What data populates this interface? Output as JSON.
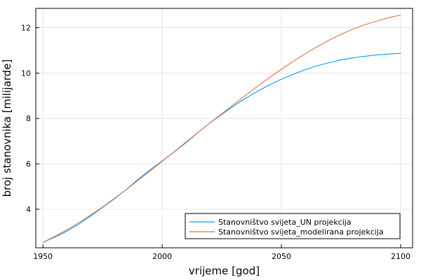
{
  "chart_data": {
    "type": "line",
    "xlabel": "vrijeme [god]",
    "ylabel": "broj stanovnika [milijarde]",
    "xlim": [
      1947,
      2105
    ],
    "ylim": [
      2.3,
      12.85
    ],
    "x_ticks": [
      1950,
      2000,
      2050,
      2100
    ],
    "y_ticks": [
      4,
      6,
      8,
      10,
      12
    ],
    "grid": true,
    "legend_position": "bottom-right",
    "series": [
      {
        "name": "Stanovništvo svijeta_UN projekcija",
        "color": "#009AFA",
        "x": [
          1950,
          1955,
          1960,
          1965,
          1970,
          1975,
          1980,
          1985,
          1990,
          1995,
          2000,
          2005,
          2010,
          2015,
          2020,
          2025,
          2030,
          2035,
          2040,
          2045,
          2050,
          2055,
          2060,
          2065,
          2070,
          2075,
          2080,
          2085,
          2090,
          2095,
          2100
        ],
        "values": [
          2.54,
          2.77,
          3.03,
          3.34,
          3.7,
          4.08,
          4.46,
          4.87,
          5.33,
          5.74,
          6.13,
          6.52,
          6.93,
          7.38,
          7.8,
          8.18,
          8.55,
          8.89,
          9.2,
          9.48,
          9.73,
          9.95,
          10.15,
          10.32,
          10.46,
          10.58,
          10.67,
          10.74,
          10.8,
          10.84,
          10.87
        ]
      },
      {
        "name": "Stanovništvo svijeta_modelirana projekcija",
        "color": "#E26F46",
        "x": [
          1950,
          1955,
          1960,
          1965,
          1970,
          1975,
          1980,
          1985,
          1990,
          1995,
          2000,
          2005,
          2010,
          2015,
          2020,
          2025,
          2030,
          2035,
          2040,
          2045,
          2050,
          2055,
          2060,
          2065,
          2070,
          2075,
          2080,
          2085,
          2090,
          2095,
          2100
        ],
        "values": [
          2.54,
          2.8,
          3.09,
          3.4,
          3.74,
          4.1,
          4.48,
          4.87,
          5.28,
          5.69,
          6.11,
          6.53,
          6.96,
          7.38,
          7.8,
          8.21,
          8.62,
          9.02,
          9.42,
          9.8,
          10.17,
          10.52,
          10.85,
          11.16,
          11.45,
          11.71,
          11.94,
          12.13,
          12.29,
          12.44,
          12.56
        ]
      }
    ]
  }
}
